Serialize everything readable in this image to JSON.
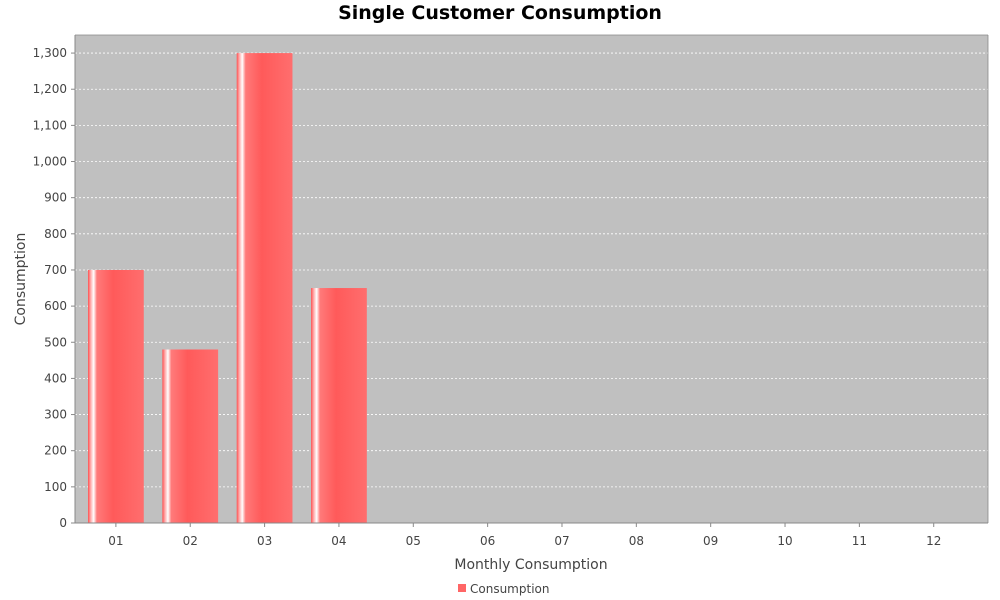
{
  "chart_data": {
    "type": "bar",
    "title": "Single Customer Consumption",
    "xlabel": "Monthly Consumption",
    "ylabel": "Consumption",
    "categories": [
      "01",
      "02",
      "03",
      "04",
      "05",
      "06",
      "07",
      "08",
      "09",
      "10",
      "11",
      "12"
    ],
    "series": [
      {
        "name": "Consumption",
        "values": [
          700,
          480,
          1300,
          650,
          0,
          0,
          0,
          0,
          0,
          0,
          0,
          0
        ]
      }
    ],
    "ylim": [
      0,
      1350
    ],
    "yticks": [
      0,
      100,
      200,
      300,
      400,
      500,
      600,
      700,
      800,
      900,
      1000,
      1100,
      1200,
      1300
    ],
    "ytick_labels": [
      "0",
      "100",
      "200",
      "300",
      "400",
      "500",
      "600",
      "700",
      "800",
      "900",
      "1,000",
      "1,100",
      "1,200",
      "1,300"
    ],
    "grid": true,
    "legend_position": "bottom-center",
    "colors": {
      "bar": "#ff6666",
      "plot_background": "#c0c0c0",
      "gridline": "#ffffff"
    }
  }
}
